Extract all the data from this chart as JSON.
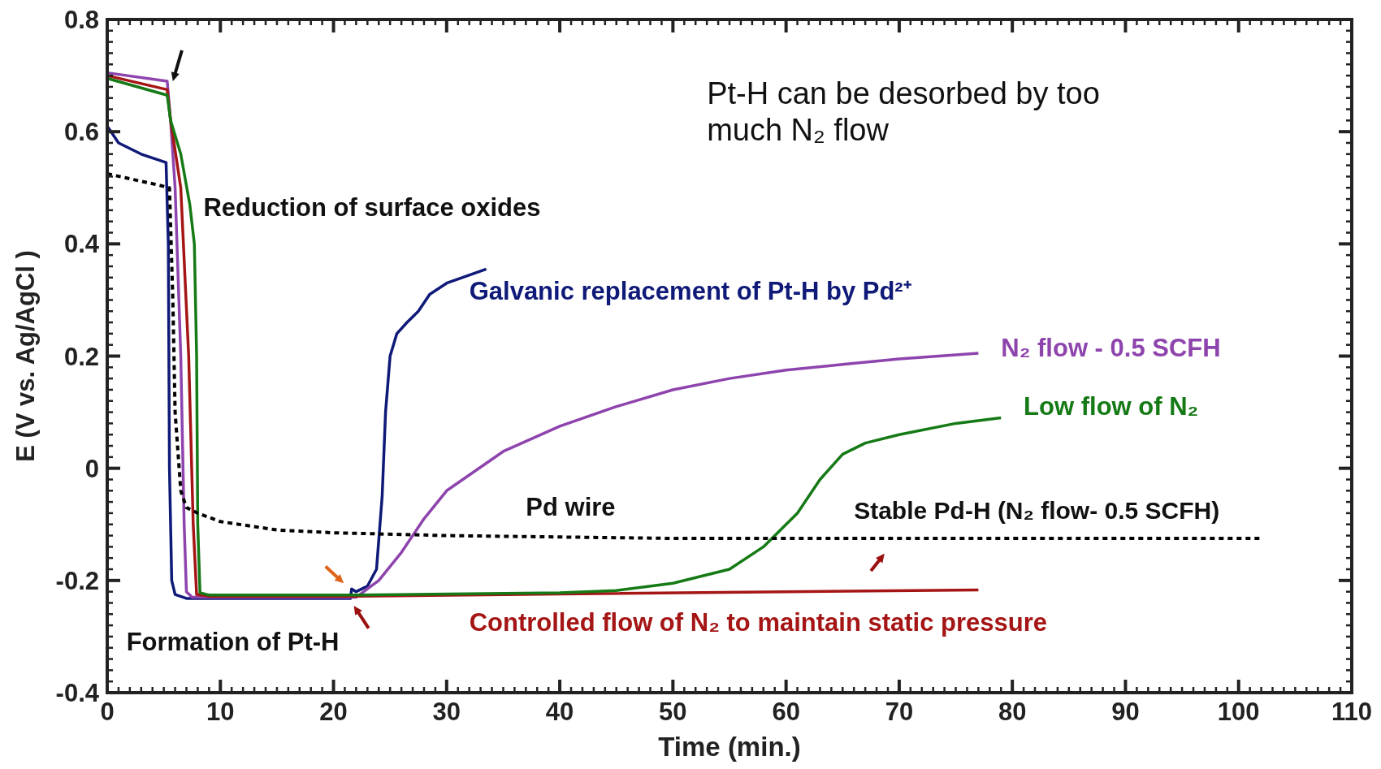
{
  "chart_data": {
    "type": "line",
    "xlabel": "Time (min.)",
    "ylabel": "E (V vs. Ag/AgCl )",
    "xlim": [
      0,
      110
    ],
    "xticks": [
      0,
      10,
      20,
      30,
      40,
      50,
      60,
      70,
      80,
      90,
      100,
      110
    ],
    "ylim": [
      -0.4,
      0.8
    ],
    "yticks": [
      -0.4,
      -0.2,
      0,
      0.2,
      0.4,
      0.6,
      0.8
    ],
    "grid": false,
    "series": [
      {
        "name": "Galvanic replacement of Pt-H by Pd²⁺",
        "color": "#0f1a78",
        "x": [
          0,
          1,
          3,
          5.2,
          5.4,
          5.5,
          5.7,
          6,
          7,
          21.5,
          21.6,
          22,
          23,
          23.8,
          24.3,
          24.6,
          25,
          25.6,
          26.5,
          27.5,
          28.5,
          30,
          33.5
        ],
        "values": [
          0.61,
          0.58,
          0.56,
          0.545,
          0.4,
          0.0,
          -0.2,
          -0.225,
          -0.232,
          -0.232,
          -0.215,
          -0.22,
          -0.21,
          -0.18,
          -0.05,
          0.1,
          0.2,
          0.24,
          0.26,
          0.28,
          0.31,
          0.33,
          0.355
        ]
      },
      {
        "name": "N₂ flow - 0.5 SCFH",
        "color": "#8e44ad",
        "x": [
          0,
          5.3,
          5.6,
          6,
          6.5,
          6.8,
          7,
          7.5,
          22,
          23,
          24,
          26,
          28,
          30,
          35,
          40,
          45,
          50,
          55,
          60,
          65,
          70,
          77
        ],
        "values": [
          0.705,
          0.69,
          0.62,
          0.5,
          0.2,
          -0.1,
          -0.22,
          -0.23,
          -0.23,
          -0.215,
          -0.2,
          -0.15,
          -0.09,
          -0.04,
          0.03,
          0.075,
          0.11,
          0.14,
          0.16,
          0.175,
          0.185,
          0.195,
          0.205
        ]
      },
      {
        "name": "Controlled flow of N₂ to maintain static pressure",
        "color": "#a51515",
        "x": [
          0,
          5.3,
          5.6,
          6.5,
          7.2,
          7.6,
          7.9,
          9,
          22,
          40,
          77
        ],
        "values": [
          0.7,
          0.675,
          0.62,
          0.5,
          0.2,
          -0.1,
          -0.225,
          -0.228,
          -0.228,
          -0.224,
          -0.217
        ]
      },
      {
        "name": "Low flow of N₂",
        "color": "#157a15",
        "x": [
          0,
          5.3,
          5.6,
          6.5,
          7.3,
          7.7,
          7.9,
          8,
          8.2,
          9,
          22,
          40,
          45,
          50,
          55,
          58,
          61,
          63,
          65,
          67,
          70,
          75,
          79
        ],
        "values": [
          0.695,
          0.665,
          0.62,
          0.56,
          0.47,
          0.4,
          0.2,
          -0.1,
          -0.222,
          -0.226,
          -0.226,
          -0.222,
          -0.218,
          -0.205,
          -0.18,
          -0.14,
          -0.08,
          -0.02,
          0.025,
          0.045,
          0.06,
          0.08,
          0.09
        ]
      },
      {
        "name": "Pd wire",
        "color": "#000000",
        "line_style": "dotted",
        "x": [
          0,
          4.5,
          5.5,
          5.8,
          6,
          6.5,
          7,
          8,
          10,
          15,
          20,
          30,
          50,
          80,
          102
        ],
        "values": [
          0.525,
          0.505,
          0.5,
          0.3,
          0.1,
          -0.04,
          -0.07,
          -0.08,
          -0.095,
          -0.11,
          -0.115,
          -0.12,
          -0.125,
          -0.125,
          -0.125
        ]
      }
    ],
    "annotations": [
      "Reduction of surface oxides",
      "Formation of Pt-H",
      "Stable Pd-H (N₂ flow- 0.5 SCFH)",
      "Pt-H can be desorbed by too much N₂ flow"
    ]
  }
}
